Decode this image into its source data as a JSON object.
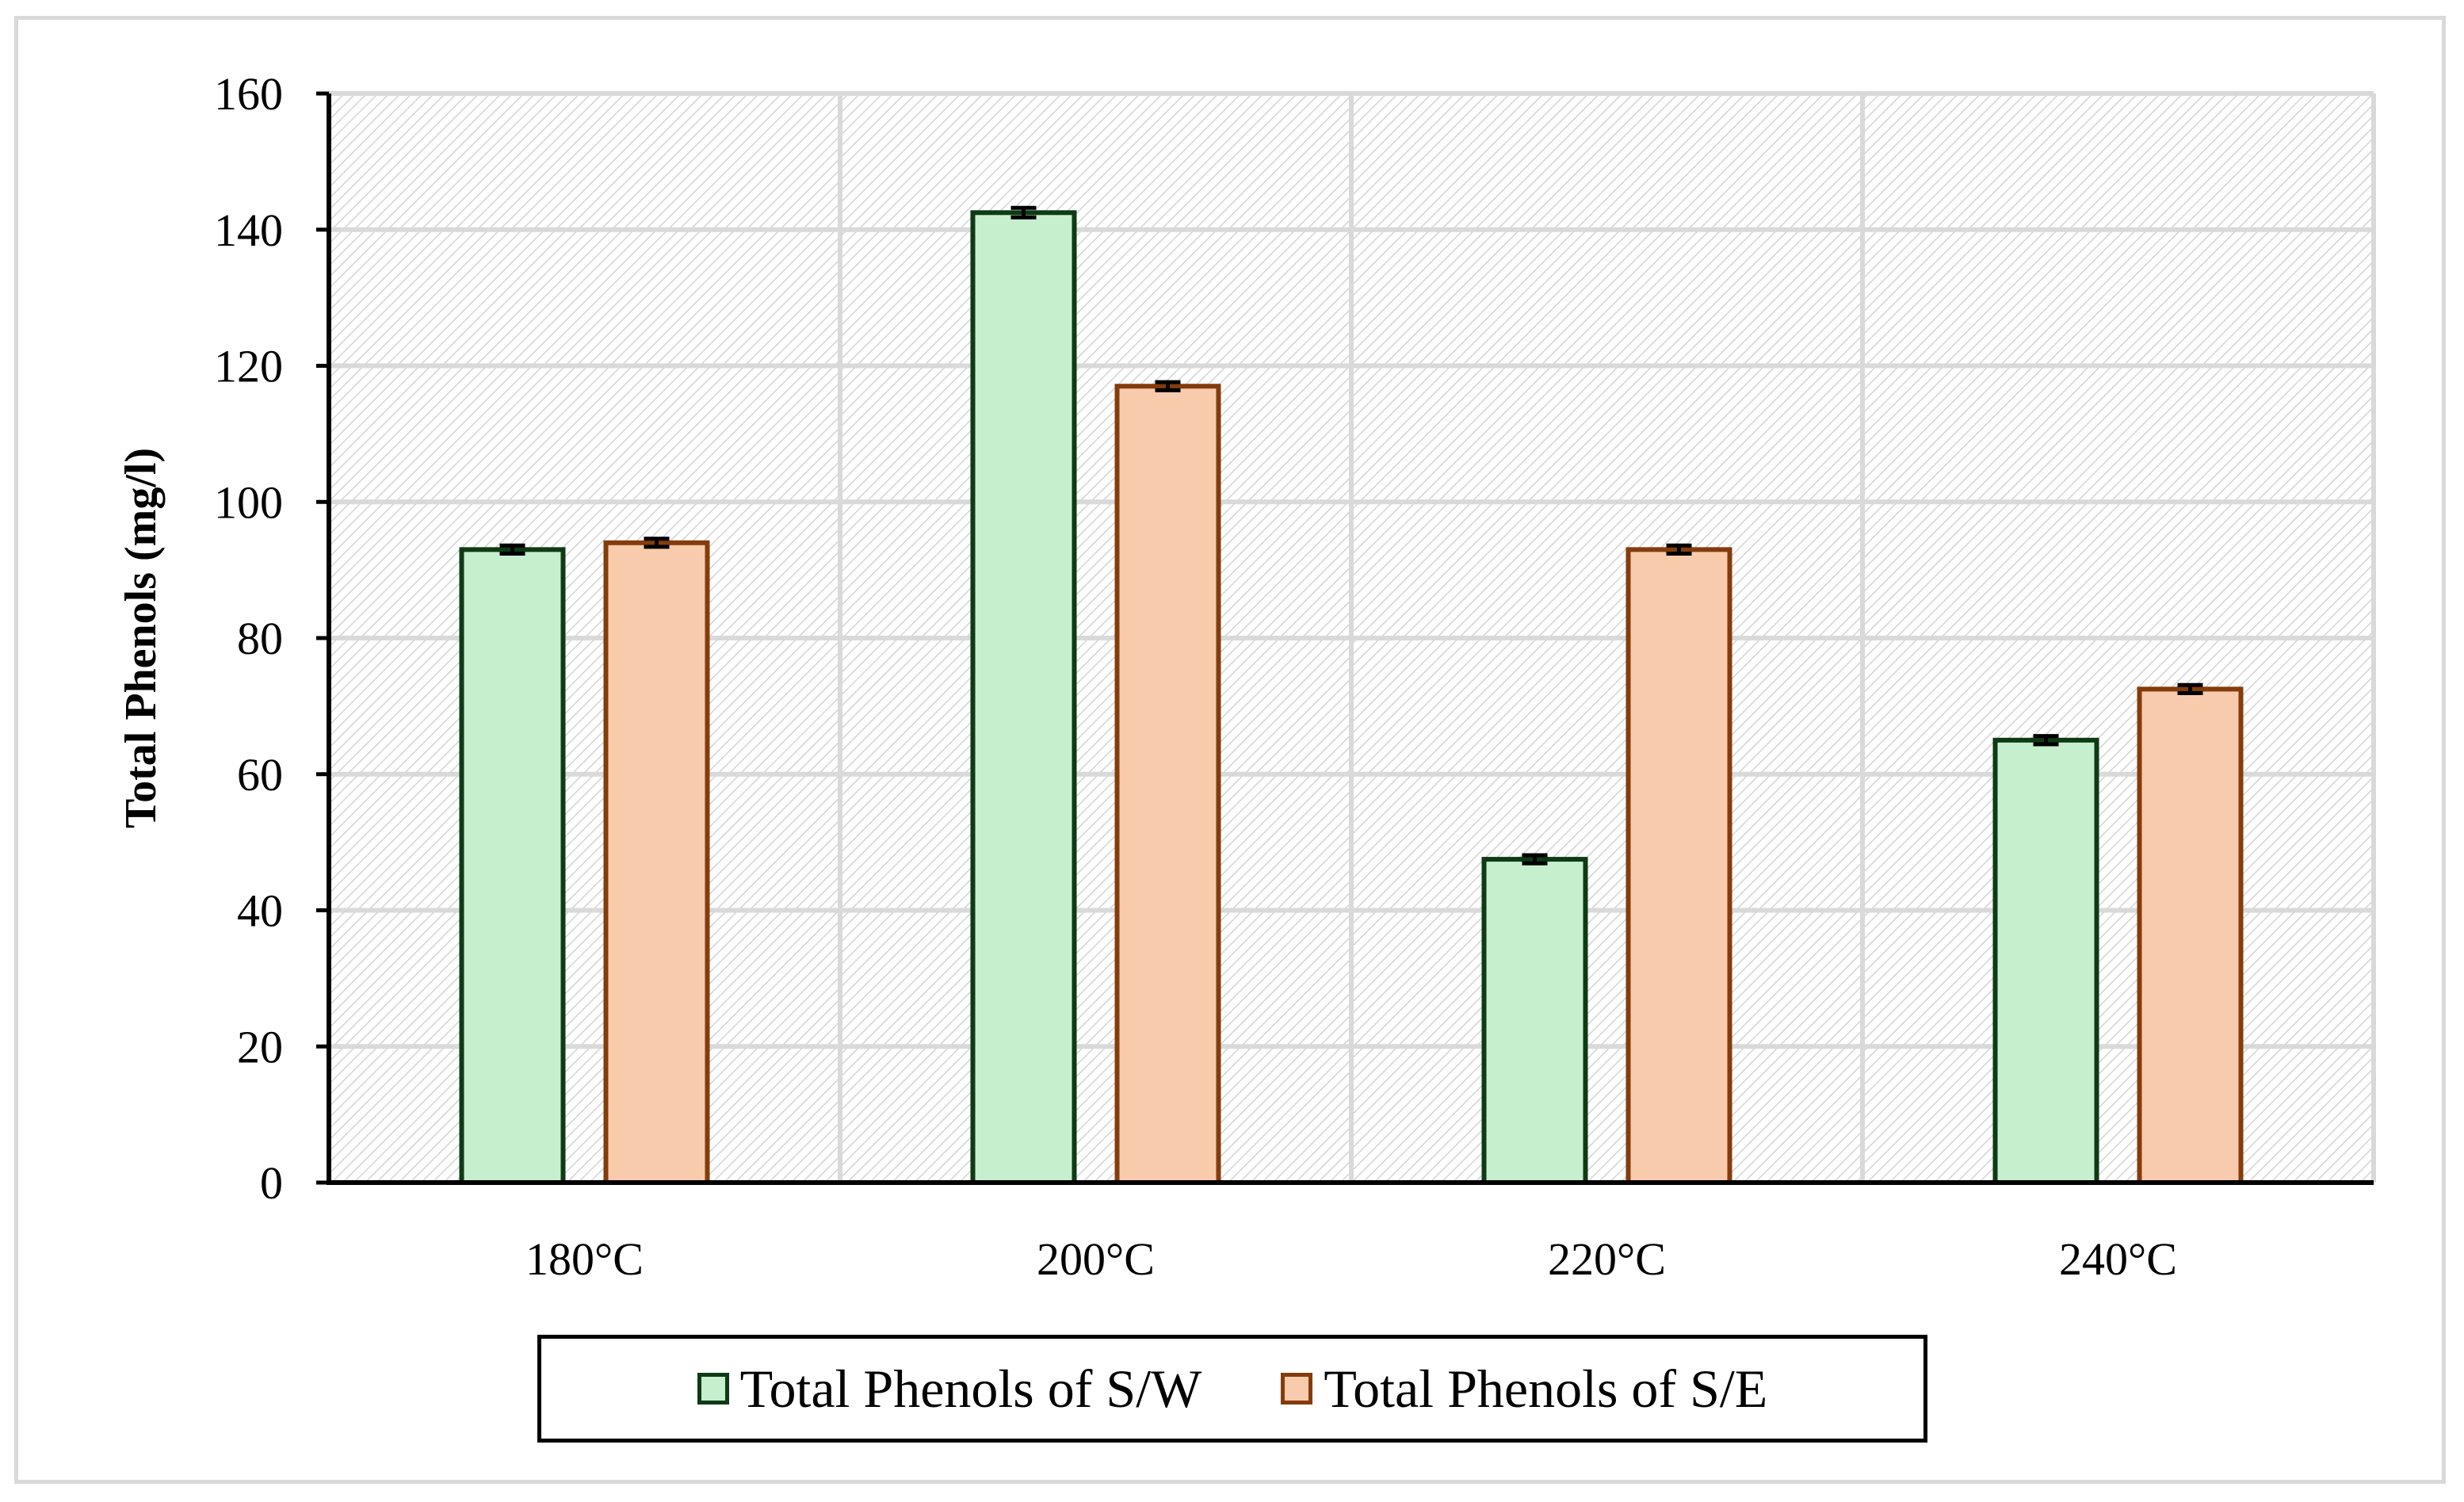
{
  "chart_data": {
    "type": "bar",
    "title": "",
    "xlabel": "",
    "ylabel": "Total Phenols (mg/l)",
    "categories": [
      "180°C",
      "200°C",
      "220°C",
      "240°C"
    ],
    "series": [
      {
        "name": "Total Phenols of S/W",
        "values": [
          93,
          142.5,
          47.5,
          65
        ],
        "errors": [
          0.6,
          0.7,
          0.6,
          0.6
        ],
        "fill": "#c6efce",
        "stroke": "#0e3a14"
      },
      {
        "name": "Total Phenols of S/E",
        "values": [
          94,
          117,
          93,
          72.5
        ],
        "errors": [
          0.6,
          0.6,
          0.6,
          0.6
        ],
        "fill": "#f8cbad",
        "stroke": "#843c0c"
      }
    ],
    "ylim": [
      0,
      160
    ],
    "yticks": [
      0,
      20,
      40,
      60,
      80,
      100,
      120,
      140,
      160
    ],
    "grid": true,
    "legend_position": "bottom"
  }
}
